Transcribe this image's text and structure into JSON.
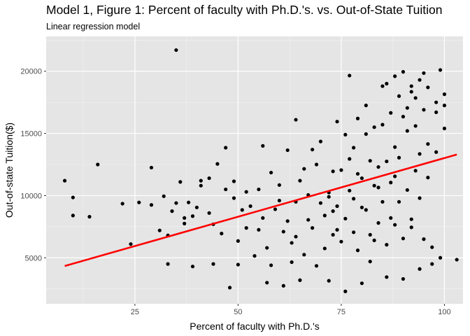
{
  "title": "Model 1, Figure 1: Percent of faculty with Ph.D.'s. vs. Out-of-State Tuition",
  "subtitle": "Linear regression model",
  "chart_data": {
    "type": "scatter",
    "title": "Model 1, Figure 1: Percent of faculty with Ph.D.'s. vs. Out-of-State Tuition",
    "subtitle": "Linear regression model",
    "xlabel": "Percent of faculty with Ph.D.'s",
    "ylabel": "Out-of-state Tuition($)",
    "xlim": [
      3.5,
      104.5
    ],
    "ylim": [
      1300,
      22800
    ],
    "x_ticks": [
      25,
      50,
      75,
      100
    ],
    "y_ticks": [
      5000,
      10000,
      15000,
      20000
    ],
    "x_tick_labels": [
      "25",
      "50",
      "75",
      "100"
    ],
    "y_tick_labels": [
      "5000",
      "10000",
      "15000",
      "20000"
    ],
    "grid": true,
    "background": "#e5e5e5",
    "point_color": "#000000",
    "regression_line": {
      "x": [
        8,
        103
      ],
      "y": [
        4340,
        13300
      ],
      "color": "#ff0000"
    },
    "points": [
      [
        8,
        11200
      ],
      [
        10,
        9850
      ],
      [
        10,
        8400
      ],
      [
        14,
        8300
      ],
      [
        16,
        12500
      ],
      [
        22,
        9350
      ],
      [
        24,
        6100
      ],
      [
        26,
        9450
      ],
      [
        29,
        12250
      ],
      [
        29,
        9250
      ],
      [
        31,
        7200
      ],
      [
        32,
        9950
      ],
      [
        33,
        4500
      ],
      [
        33,
        6800
      ],
      [
        34,
        8750
      ],
      [
        35,
        21700
      ],
      [
        35,
        9400
      ],
      [
        36,
        11100
      ],
      [
        37,
        7750
      ],
      [
        37,
        8200
      ],
      [
        38,
        9450
      ],
      [
        39,
        4300
      ],
      [
        39,
        8350
      ],
      [
        40,
        9050
      ],
      [
        41,
        10800
      ],
      [
        41,
        11200
      ],
      [
        43,
        8600
      ],
      [
        43,
        11400
      ],
      [
        44,
        4500
      ],
      [
        44,
        7700
      ],
      [
        45,
        12550
      ],
      [
        46,
        6950
      ],
      [
        47,
        13850
      ],
      [
        47,
        10500
      ],
      [
        48,
        2600
      ],
      [
        49,
        9800
      ],
      [
        49,
        11150
      ],
      [
        50,
        4450
      ],
      [
        50,
        6350
      ],
      [
        51,
        8850
      ],
      [
        52,
        7400
      ],
      [
        53,
        9150
      ],
      [
        54,
        5150
      ],
      [
        55,
        10500
      ],
      [
        56,
        8200
      ],
      [
        56,
        14000
      ],
      [
        57,
        5800
      ],
      [
        58,
        4400
      ],
      [
        59,
        8900
      ],
      [
        60,
        10850
      ],
      [
        61,
        2750
      ],
      [
        61,
        7100
      ],
      [
        62,
        13650
      ],
      [
        63,
        4650
      ],
      [
        63,
        6200
      ],
      [
        64,
        16100
      ],
      [
        64,
        9500
      ],
      [
        65,
        11200
      ],
      [
        66,
        5250
      ],
      [
        67,
        8050
      ],
      [
        68,
        7400
      ],
      [
        68,
        13700
      ],
      [
        69,
        4350
      ],
      [
        70,
        9400
      ],
      [
        70,
        14350
      ],
      [
        71,
        5750
      ],
      [
        72,
        9900
      ],
      [
        72,
        10250
      ],
      [
        73,
        11950
      ],
      [
        73,
        6850
      ],
      [
        74,
        15950
      ],
      [
        74,
        7250
      ],
      [
        75,
        12050
      ],
      [
        75,
        6300
      ],
      [
        76,
        2300
      ],
      [
        76,
        8150
      ],
      [
        77,
        19650
      ],
      [
        77,
        10400
      ],
      [
        78,
        13850
      ],
      [
        78,
        7050
      ],
      [
        79,
        5600
      ],
      [
        79,
        16200
      ],
      [
        80,
        9050
      ],
      [
        80,
        11400
      ],
      [
        81,
        8850
      ],
      [
        81,
        14950
      ],
      [
        82,
        4700
      ],
      [
        82,
        12800
      ],
      [
        83,
        15500
      ],
      [
        83,
        6400
      ],
      [
        84,
        7800
      ],
      [
        84,
        10650
      ],
      [
        85,
        18800
      ],
      [
        85,
        9500
      ],
      [
        86,
        12750
      ],
      [
        86,
        6050
      ],
      [
        87,
        16650
      ],
      [
        87,
        8200
      ],
      [
        88,
        13900
      ],
      [
        88,
        7650
      ],
      [
        89,
        18000
      ],
      [
        89,
        9500
      ],
      [
        90,
        19950
      ],
      [
        90,
        6550
      ],
      [
        91,
        15200
      ],
      [
        91,
        10450
      ],
      [
        92,
        18800
      ],
      [
        92,
        8100
      ],
      [
        93,
        17850
      ],
      [
        93,
        12000
      ],
      [
        94,
        4100
      ],
      [
        94,
        9800
      ],
      [
        95,
        19850
      ],
      [
        95,
        6500
      ],
      [
        96,
        18700
      ],
      [
        96,
        11450
      ],
      [
        97,
        5850
      ],
      [
        98,
        17500
      ],
      [
        98,
        13500
      ],
      [
        99,
        20100
      ],
      [
        99,
        5000
      ],
      [
        100,
        17250
      ],
      [
        100,
        15400
      ],
      [
        103,
        4850
      ],
      [
        90,
        3300
      ],
      [
        97,
        4500
      ],
      [
        92,
        7450
      ],
      [
        86,
        3450
      ],
      [
        65,
        3200
      ],
      [
        80,
        2950
      ],
      [
        57,
        3000
      ],
      [
        72,
        3150
      ],
      [
        88,
        11550
      ],
      [
        91,
        17050
      ],
      [
        94,
        13350
      ],
      [
        77,
        12950
      ],
      [
        69,
        12500
      ],
      [
        83,
        10800
      ],
      [
        85,
        15700
      ],
      [
        79,
        11750
      ],
      [
        71,
        8400
      ],
      [
        67,
        10050
      ],
      [
        62,
        7950
      ],
      [
        74,
        9150
      ],
      [
        82,
        6850
      ],
      [
        89,
        13050
      ],
      [
        93,
        15600
      ],
      [
        96,
        14150
      ],
      [
        81,
        17250
      ],
      [
        76,
        14900
      ],
      [
        66,
        12150
      ],
      [
        60,
        9600
      ],
      [
        55,
        7250
      ],
      [
        52,
        10300
      ],
      [
        58,
        11850
      ],
      [
        64,
        6700
      ],
      [
        73,
        8750
      ],
      [
        78,
        9750
      ],
      [
        84,
        12300
      ],
      [
        87,
        11050
      ],
      [
        90,
        16350
      ],
      [
        92,
        18350
      ],
      [
        95,
        16900
      ],
      [
        98,
        16700
      ],
      [
        100,
        18150
      ],
      [
        86,
        19000
      ],
      [
        88,
        19600
      ],
      [
        94,
        19300
      ]
    ]
  }
}
